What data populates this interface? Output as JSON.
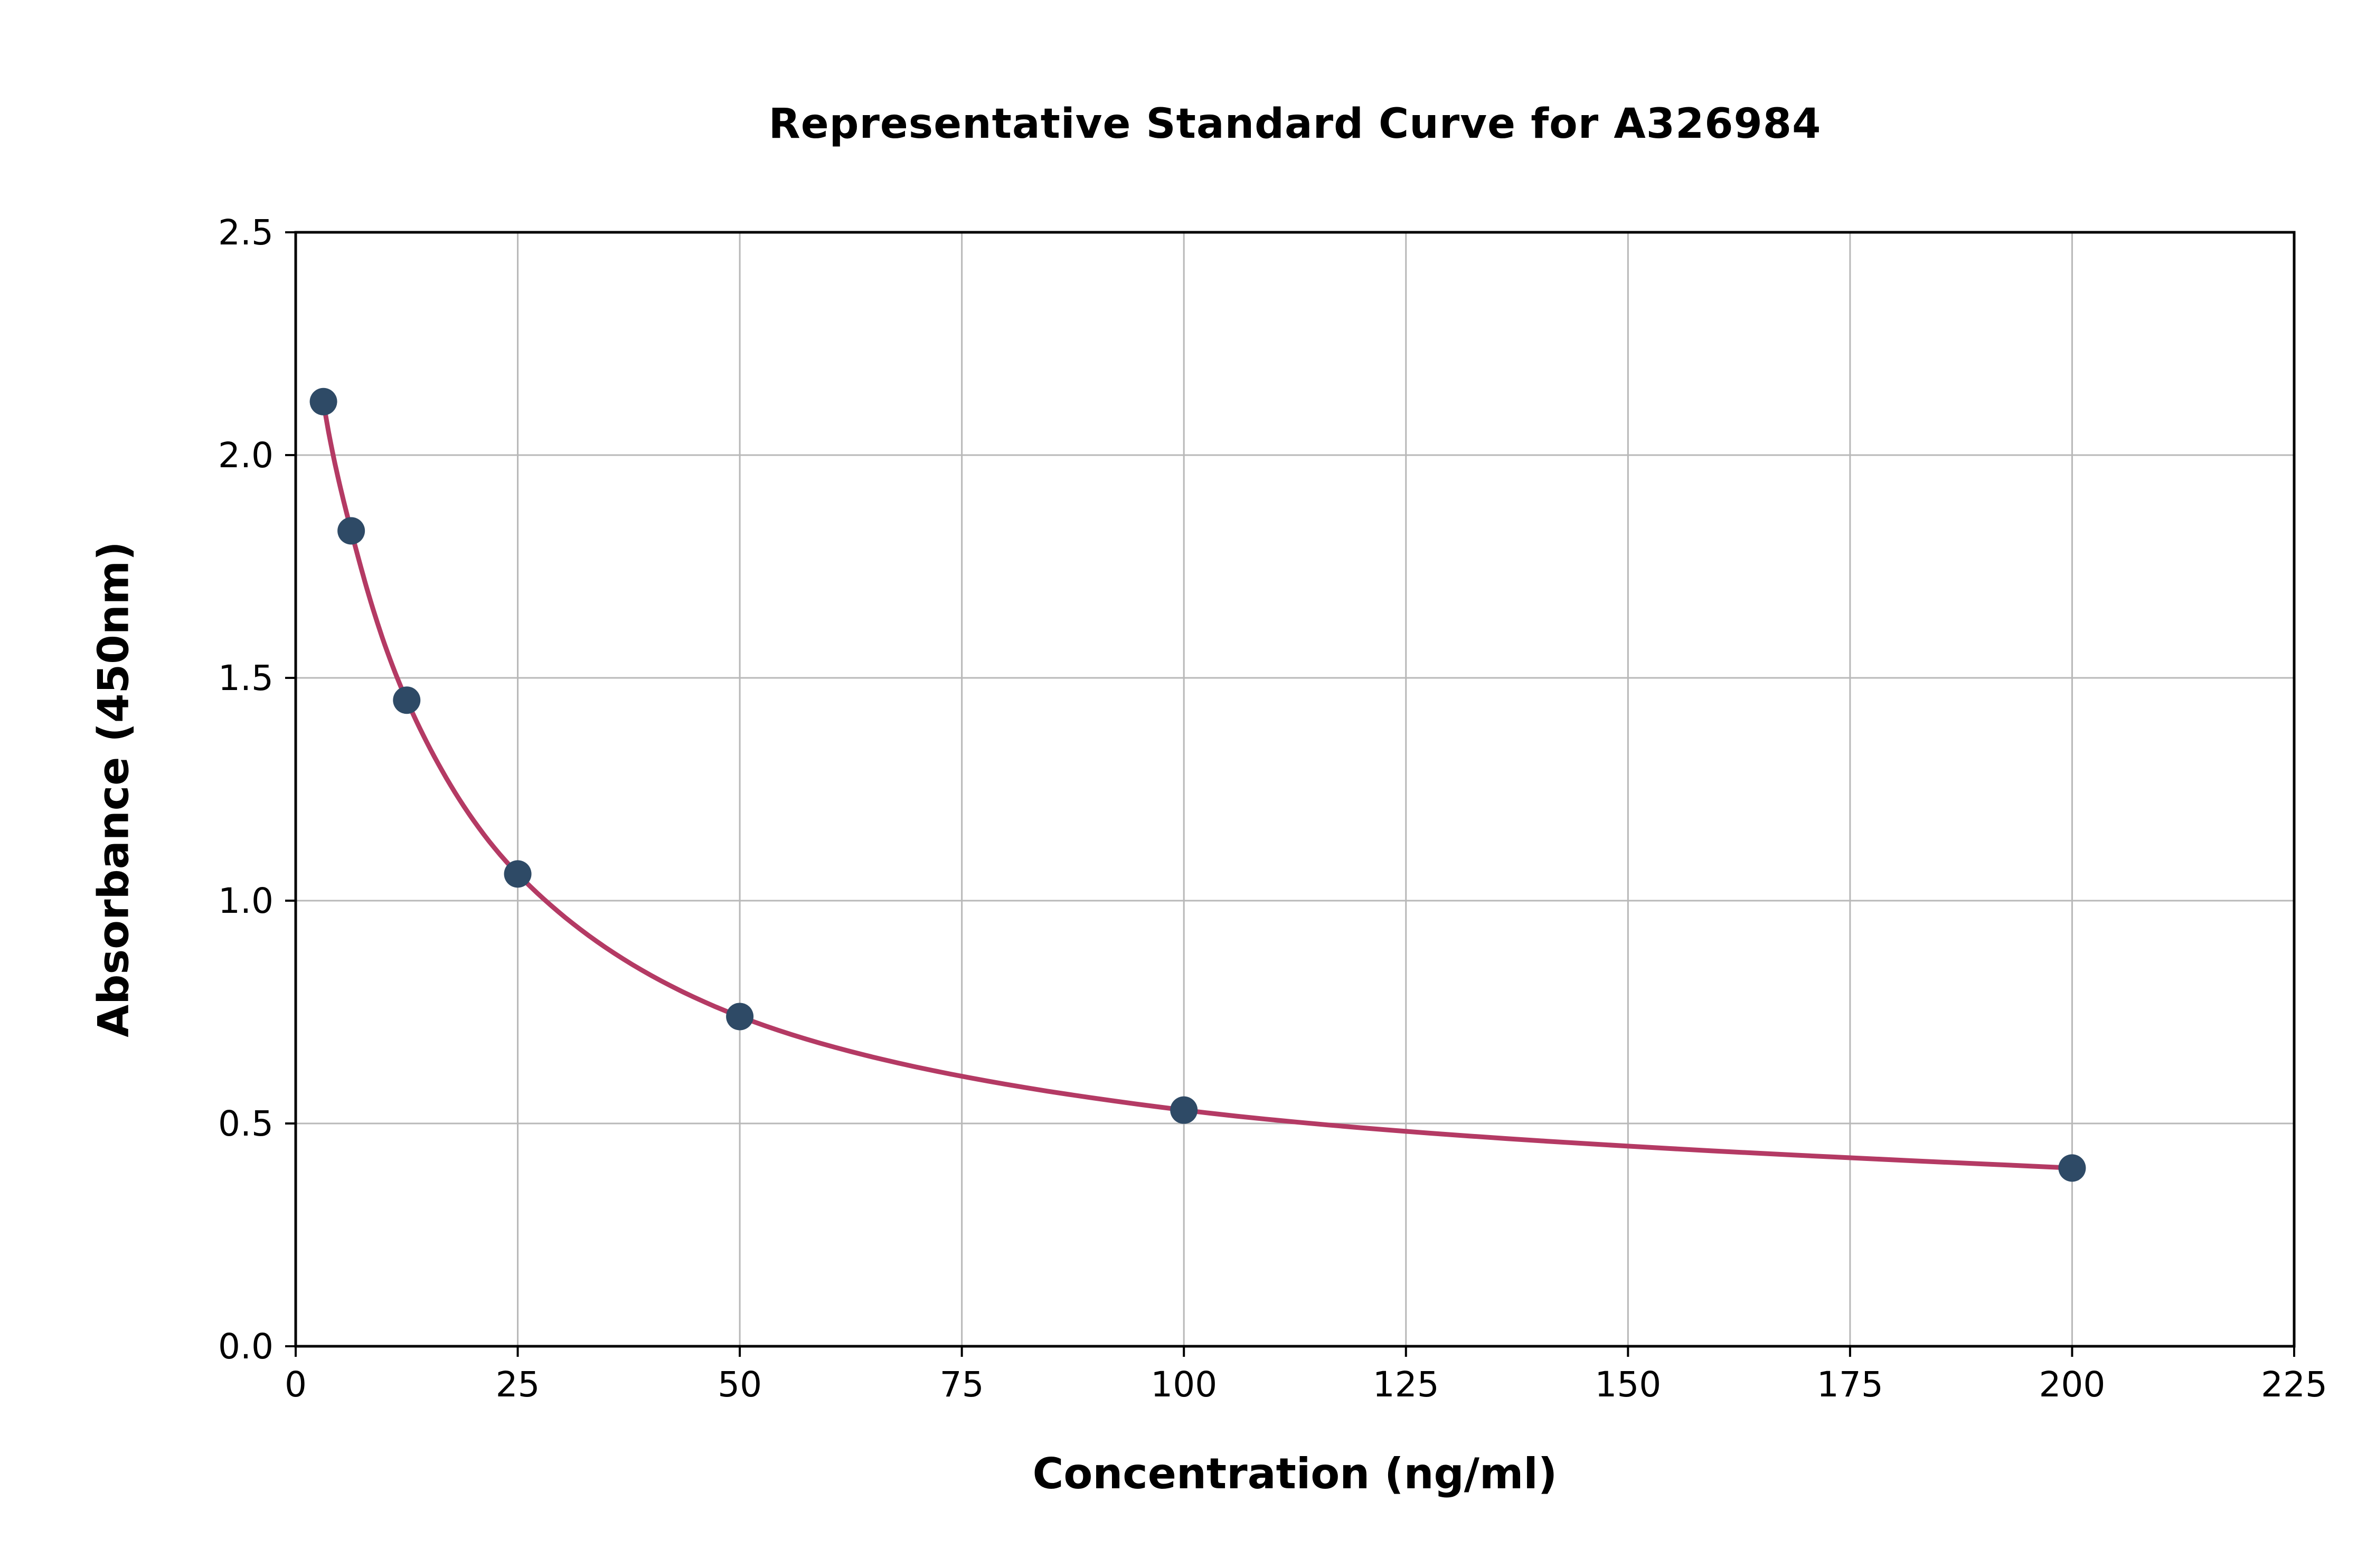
{
  "chart_data": {
    "type": "line",
    "title": "Representative Standard Curve for A326984",
    "xlabel": "Concentration (ng/ml)",
    "ylabel": "Absorbance (450nm)",
    "xlim": [
      0,
      225
    ],
    "ylim": [
      0.0,
      2.5
    ],
    "x_ticks": [
      0,
      25,
      50,
      75,
      100,
      125,
      150,
      175,
      200,
      225
    ],
    "y_ticks": [
      0.0,
      0.5,
      1.0,
      1.5,
      2.0,
      2.5
    ],
    "grid": true,
    "legend_position": "none",
    "series": [
      {
        "name": "standard-curve",
        "x": [
          3.125,
          6.25,
          12.5,
          25,
          50,
          100,
          200
        ],
        "y": [
          2.12,
          1.83,
          1.45,
          1.06,
          0.74,
          0.53,
          0.4
        ]
      }
    ],
    "colors": {
      "line": "#b43a64",
      "marker": "#2e4a66",
      "grid": "#b8b8b8",
      "axis": "#000000",
      "background": "#ffffff"
    }
  }
}
